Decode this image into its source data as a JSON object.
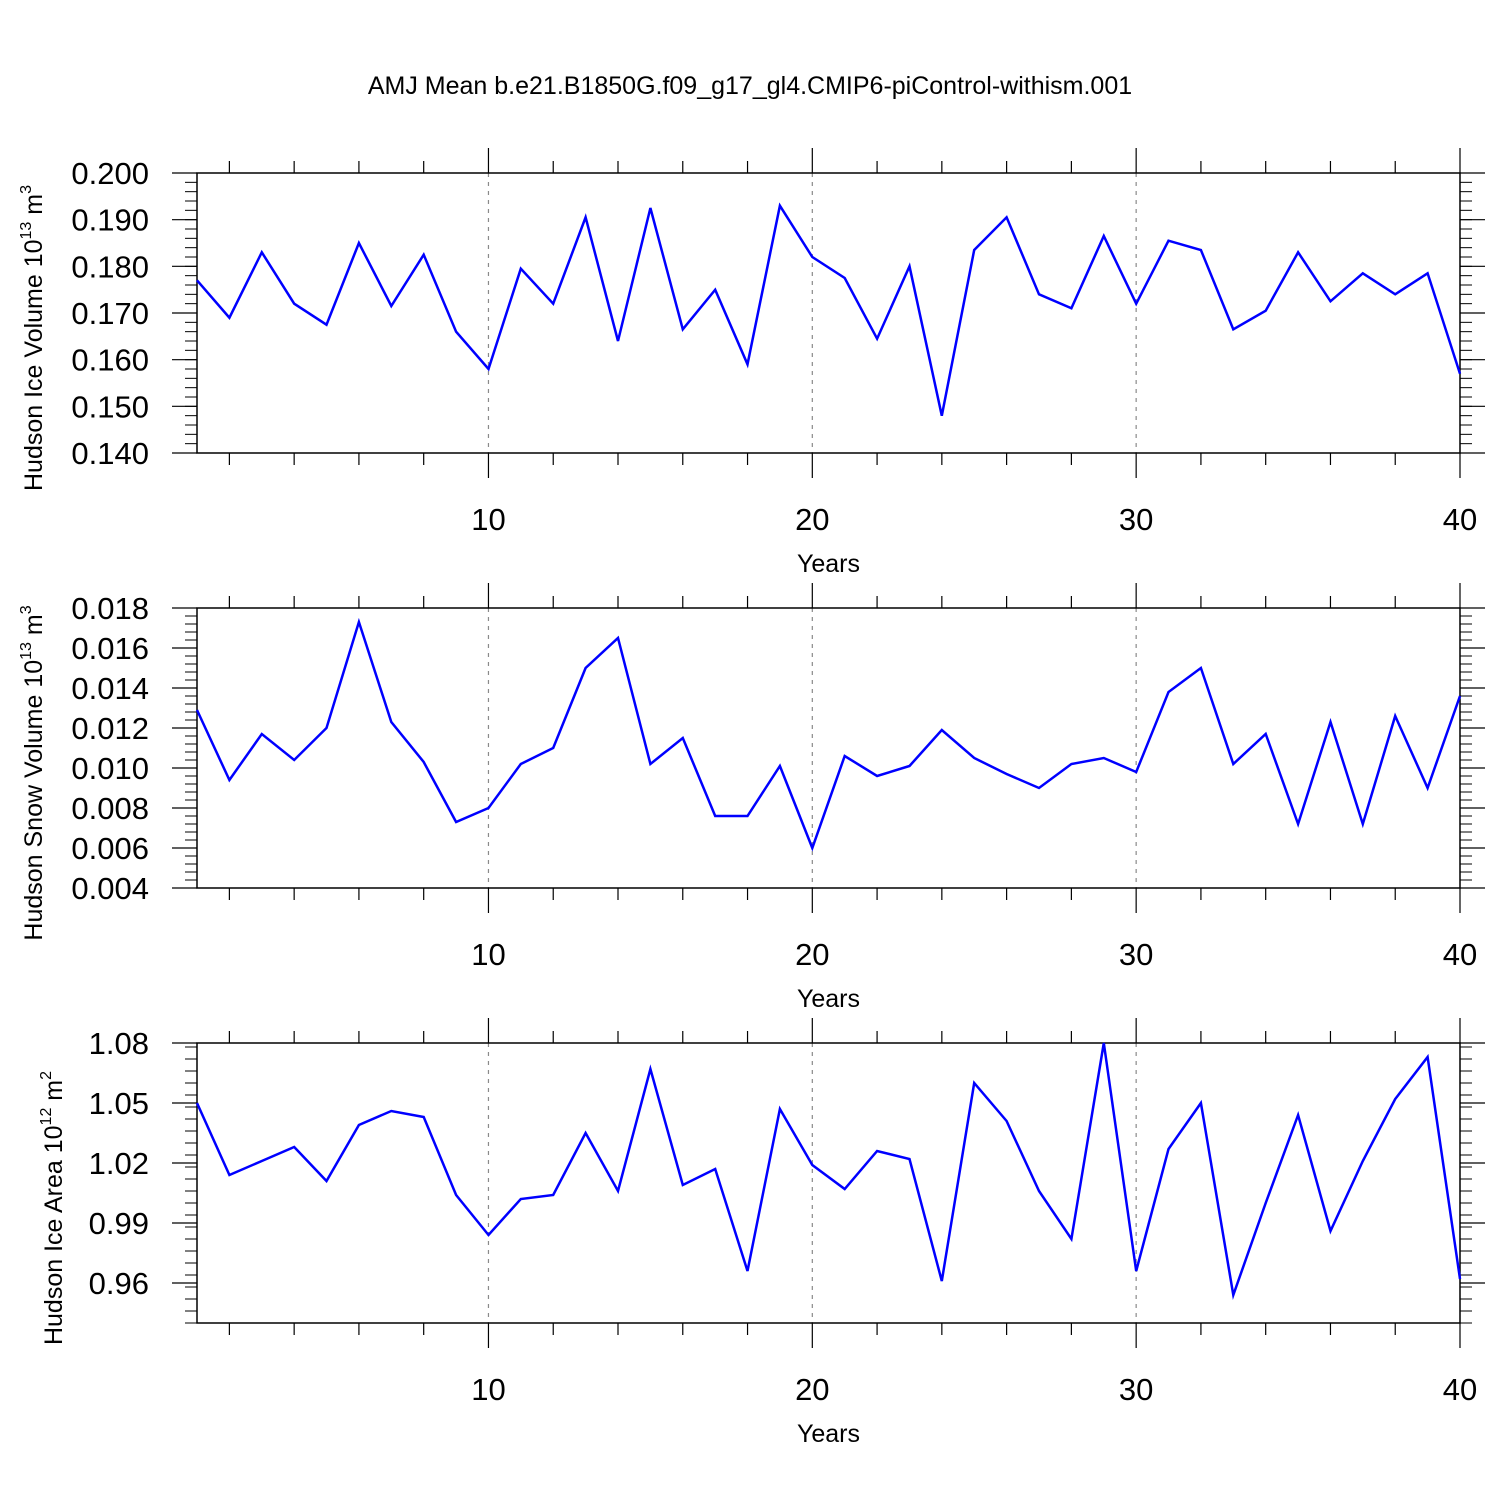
{
  "title": "AMJ Mean b.e21.B1850G.f09_g17_gl4.CMIP6-piControl-withism.001",
  "colors": {
    "series": "#0000ff",
    "axes": "#000000",
    "grid": "#8a8a8a"
  },
  "chart_data": [
    {
      "type": "line",
      "ylabel_main": "Hudson Ice Volume 10",
      "ylabel_exp": "13",
      "ylabel_unit": " m",
      "ylabel_unit_exp": "3",
      "xlabel": "Years",
      "xlim": [
        1,
        40
      ],
      "ylim": [
        0.14,
        0.2
      ],
      "yticks": [
        "0.140",
        "0.150",
        "0.160",
        "0.170",
        "0.180",
        "0.190",
        "0.200"
      ],
      "xticks": [
        "10",
        "20",
        "30",
        "40"
      ],
      "grid": "dashed vertical lines at 10, 20, 30",
      "x": [
        1,
        2,
        3,
        4,
        5,
        6,
        7,
        8,
        9,
        10,
        11,
        12,
        13,
        14,
        15,
        16,
        17,
        18,
        19,
        20,
        21,
        22,
        23,
        24,
        25,
        26,
        27,
        28,
        29,
        30,
        31,
        32,
        33,
        34,
        35,
        36,
        37,
        38,
        39,
        40
      ],
      "values": [
        0.177,
        0.169,
        0.183,
        0.172,
        0.1675,
        0.185,
        0.1715,
        0.1825,
        0.166,
        0.158,
        0.1795,
        0.172,
        0.1905,
        0.164,
        0.1925,
        0.1665,
        0.175,
        0.159,
        0.193,
        0.182,
        0.1775,
        0.1645,
        0.18,
        0.148,
        0.1835,
        0.1905,
        0.174,
        0.171,
        0.1865,
        0.172,
        0.1855,
        0.1835,
        0.1665,
        0.1705,
        0.183,
        0.1725,
        0.1785,
        0.174,
        0.1785,
        0.157
      ]
    },
    {
      "type": "line",
      "ylabel_main": "Hudson Snow Volume 10",
      "ylabel_exp": "13",
      "ylabel_unit": " m",
      "ylabel_unit_exp": "3",
      "xlabel": "Years",
      "xlim": [
        1,
        40
      ],
      "ylim": [
        0.004,
        0.018
      ],
      "yticks": [
        "0.004",
        "0.006",
        "0.008",
        "0.010",
        "0.012",
        "0.014",
        "0.016",
        "0.018"
      ],
      "xticks": [
        "10",
        "20",
        "30",
        "40"
      ],
      "grid": "dashed vertical lines at 10, 20, 30",
      "x": [
        1,
        2,
        3,
        4,
        5,
        6,
        7,
        8,
        9,
        10,
        11,
        12,
        13,
        14,
        15,
        16,
        17,
        18,
        19,
        20,
        21,
        22,
        23,
        24,
        25,
        26,
        27,
        28,
        29,
        30,
        31,
        32,
        33,
        34,
        35,
        36,
        37,
        38,
        39,
        40
      ],
      "values": [
        0.0129,
        0.0094,
        0.0117,
        0.0104,
        0.012,
        0.0173,
        0.0123,
        0.0103,
        0.0073,
        0.008,
        0.0102,
        0.011,
        0.015,
        0.0165,
        0.0102,
        0.0115,
        0.0076,
        0.0076,
        0.0101,
        0.006,
        0.0106,
        0.0096,
        0.0101,
        0.0119,
        0.0105,
        0.0097,
        0.009,
        0.0102,
        0.0105,
        0.0098,
        0.0138,
        0.015,
        0.0102,
        0.0117,
        0.0072,
        0.0123,
        0.0072,
        0.0126,
        0.009,
        0.0136
      ]
    },
    {
      "type": "line",
      "ylabel_main": "Hudson Ice Area 10",
      "ylabel_exp": "12",
      "ylabel_unit": " m",
      "ylabel_unit_exp": "2",
      "xlabel": "Years",
      "xlim": [
        1,
        40
      ],
      "ylim": [
        0.94,
        1.08
      ],
      "yticks": [
        "0.96",
        "0.99",
        "1.02",
        "1.05",
        "1.08"
      ],
      "xticks": [
        "10",
        "20",
        "30",
        "40"
      ],
      "grid": "dashed vertical lines at 10, 20, 30",
      "x": [
        1,
        2,
        3,
        4,
        5,
        6,
        7,
        8,
        9,
        10,
        11,
        12,
        13,
        14,
        15,
        16,
        17,
        18,
        19,
        20,
        21,
        22,
        23,
        24,
        25,
        26,
        27,
        28,
        29,
        30,
        31,
        32,
        33,
        34,
        35,
        36,
        37,
        38,
        39,
        40
      ],
      "values": [
        1.05,
        1.014,
        1.021,
        1.028,
        1.011,
        1.039,
        1.046,
        1.043,
        1.004,
        0.984,
        1.002,
        1.004,
        1.035,
        1.006,
        1.067,
        1.009,
        1.017,
        0.966,
        1.047,
        1.019,
        1.007,
        1.026,
        1.022,
        0.961,
        1.06,
        1.041,
        1.006,
        0.982,
        1.08,
        0.966,
        1.027,
        1.05,
        0.954,
        1.0,
        1.044,
        0.986,
        1.021,
        1.052,
        1.073,
        0.962
      ]
    }
  ]
}
